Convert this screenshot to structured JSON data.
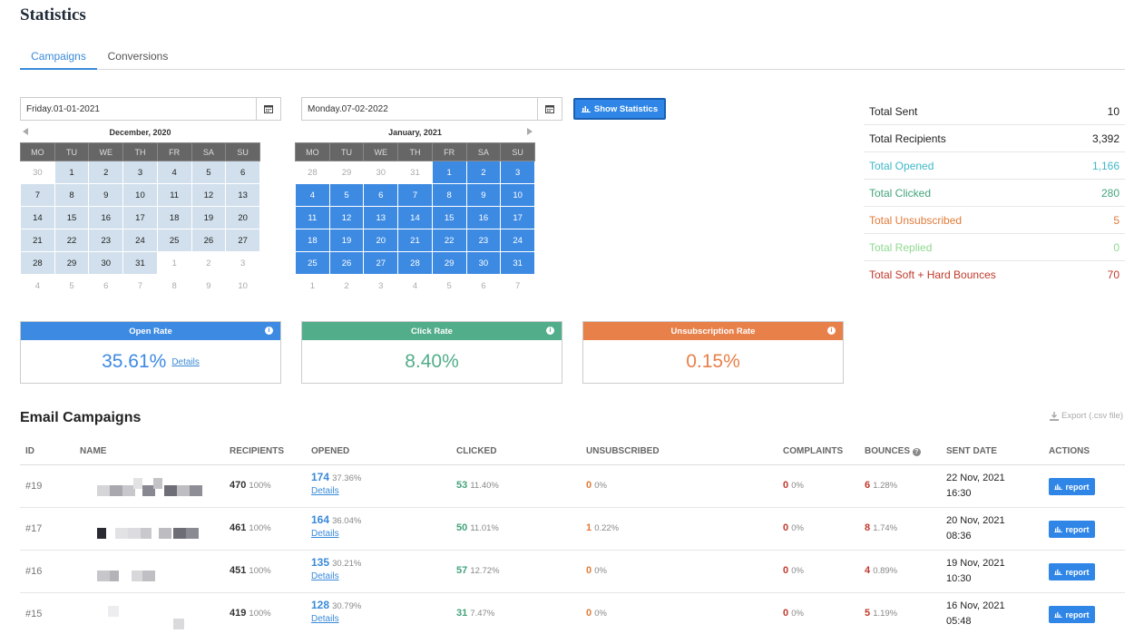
{
  "page": {
    "title": "Statistics"
  },
  "tabs": [
    {
      "label": "Campaigns"
    },
    {
      "label": "Conversions"
    }
  ],
  "filters": {
    "start_date": "Friday.01-01-2021",
    "end_date": "Monday.07-02-2022",
    "show_button": "Show Statistics"
  },
  "calendars": [
    {
      "title": "December, 2020",
      "weekdays": [
        "MO",
        "TU",
        "WE",
        "TH",
        "FR",
        "SA",
        "SU"
      ],
      "weeks": [
        [
          "30",
          "1",
          "2",
          "3",
          "4",
          "5",
          "6"
        ],
        [
          "7",
          "8",
          "9",
          "10",
          "11",
          "12",
          "13"
        ],
        [
          "14",
          "15",
          "16",
          "17",
          "18",
          "19",
          "20"
        ],
        [
          "21",
          "22",
          "23",
          "24",
          "25",
          "26",
          "27"
        ],
        [
          "28",
          "29",
          "30",
          "31",
          "1",
          "2",
          "3"
        ],
        [
          "4",
          "5",
          "6",
          "7",
          "8",
          "9",
          "10"
        ]
      ]
    },
    {
      "title": "January, 2021",
      "weekdays": [
        "MO",
        "TU",
        "WE",
        "TH",
        "FR",
        "SA",
        "SU"
      ],
      "weeks": [
        [
          "28",
          "29",
          "30",
          "31",
          "1",
          "2",
          "3"
        ],
        [
          "4",
          "5",
          "6",
          "7",
          "8",
          "9",
          "10"
        ],
        [
          "11",
          "12",
          "13",
          "14",
          "15",
          "16",
          "17"
        ],
        [
          "18",
          "19",
          "20",
          "21",
          "22",
          "23",
          "24"
        ],
        [
          "25",
          "26",
          "27",
          "28",
          "29",
          "30",
          "31"
        ],
        [
          "1",
          "2",
          "3",
          "4",
          "5",
          "6",
          "7"
        ]
      ]
    }
  ],
  "totals": [
    {
      "label": "Total Sent",
      "value": "10",
      "color": "#222222"
    },
    {
      "label": "Total Recipients",
      "value": "3,392",
      "color": "#222222"
    },
    {
      "label": "Total Opened",
      "value": "1,166",
      "color": "#3fb8c8"
    },
    {
      "label": "Total Clicked",
      "value": "280",
      "color": "#43a47b"
    },
    {
      "label": "Total Unsubscribed",
      "value": "5",
      "color": "#e07b39"
    },
    {
      "label": "Total Replied",
      "value": "0",
      "color": "#8fd98f"
    },
    {
      "label": "Total Soft + Hard Bounces",
      "value": "70",
      "color": "#c0392b"
    }
  ],
  "rates": [
    {
      "title": "Open Rate",
      "value": "35.61%",
      "link": "Details",
      "color": "#3d8ae3"
    },
    {
      "title": "Click Rate",
      "value": "8.40%",
      "color": "#52ad8a"
    },
    {
      "title": "Unsubscription Rate",
      "value": "0.15%",
      "color": "#e8804a"
    }
  ],
  "campaigns": {
    "title": "Email Campaigns",
    "export_label": "Export (.csv file)",
    "columns": [
      "ID",
      "NAME",
      "RECIPIENTS",
      "OPENED",
      "CLICKED",
      "UNSUBSCRIBED",
      "COMPLAINTS",
      "BOUNCES",
      "SENT DATE",
      "ACTIONS"
    ],
    "report_label": "report",
    "details_label": "Details",
    "rows": [
      {
        "id": "#19",
        "recipients": "470",
        "recipients_pct": "100%",
        "opened": "174",
        "opened_pct": "37.36%",
        "clicked": "53",
        "clicked_pct": "11.40%",
        "unsub": "0",
        "unsub_pct": "0%",
        "complaints": "0",
        "complaints_pct": "0%",
        "bounces": "6",
        "bounces_pct": "1.28%",
        "date": "22 Nov, 2021",
        "time": "16:30"
      },
      {
        "id": "#17",
        "recipients": "461",
        "recipients_pct": "100%",
        "opened": "164",
        "opened_pct": "36.04%",
        "clicked": "50",
        "clicked_pct": "11.01%",
        "unsub": "1",
        "unsub_pct": "0.22%",
        "complaints": "0",
        "complaints_pct": "0%",
        "bounces": "8",
        "bounces_pct": "1.74%",
        "date": "20 Nov, 2021",
        "time": "08:36"
      },
      {
        "id": "#16",
        "recipients": "451",
        "recipients_pct": "100%",
        "opened": "135",
        "opened_pct": "30.21%",
        "clicked": "57",
        "clicked_pct": "12.72%",
        "unsub": "0",
        "unsub_pct": "0%",
        "complaints": "0",
        "complaints_pct": "0%",
        "bounces": "4",
        "bounces_pct": "0.89%",
        "date": "19 Nov, 2021",
        "time": "10:30"
      },
      {
        "id": "#15",
        "recipients": "419",
        "recipients_pct": "100%",
        "opened": "128",
        "opened_pct": "30.79%",
        "clicked": "31",
        "clicked_pct": "7.47%",
        "unsub": "0",
        "unsub_pct": "0%",
        "complaints": "0",
        "complaints_pct": "0%",
        "bounces": "5",
        "bounces_pct": "1.19%",
        "date": "16 Nov, 2021",
        "time": "05:48"
      }
    ]
  }
}
